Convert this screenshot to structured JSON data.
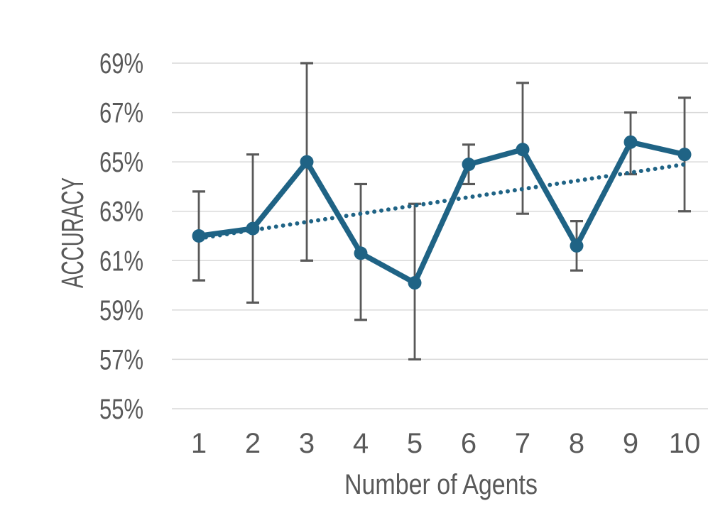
{
  "chart_data": {
    "type": "line",
    "title": "",
    "xlabel": "Number of Agents",
    "ylabel": "ACCURACY",
    "x": [
      1,
      2,
      3,
      4,
      5,
      6,
      7,
      8,
      9,
      10
    ],
    "series": [
      {
        "name": "Accuracy",
        "values": [
          62.0,
          62.3,
          65.0,
          61.3,
          60.1,
          64.9,
          65.5,
          61.6,
          65.8,
          65.3
        ],
        "error_low": [
          60.2,
          59.3,
          61.0,
          58.6,
          57.0,
          64.1,
          62.9,
          60.6,
          64.5,
          63.0
        ],
        "error_high": [
          63.8,
          65.3,
          69.0,
          64.1,
          63.3,
          65.7,
          68.2,
          62.6,
          67.0,
          67.6
        ]
      }
    ],
    "trendline": {
      "style": "dotted",
      "x": [
        1,
        10
      ],
      "y": [
        61.9,
        64.9
      ]
    },
    "xlim": [
      1,
      10
    ],
    "ylim": [
      55,
      69
    ],
    "yticks": [
      69,
      67,
      65,
      63,
      61,
      59,
      57,
      55
    ],
    "ytick_format": "{v}%",
    "xticks": [
      1,
      2,
      3,
      4,
      5,
      6,
      7,
      8,
      9,
      10
    ],
    "grid": "horizontal",
    "legend": "none"
  },
  "colors": {
    "line": "#1f6385",
    "marker": "#1f6385",
    "trend": "#1f6385",
    "error_bar": "#595959",
    "gridline": "#d9d9d9",
    "tick_label": "#595959",
    "axis_label": "#595959",
    "background": "#ffffff"
  }
}
